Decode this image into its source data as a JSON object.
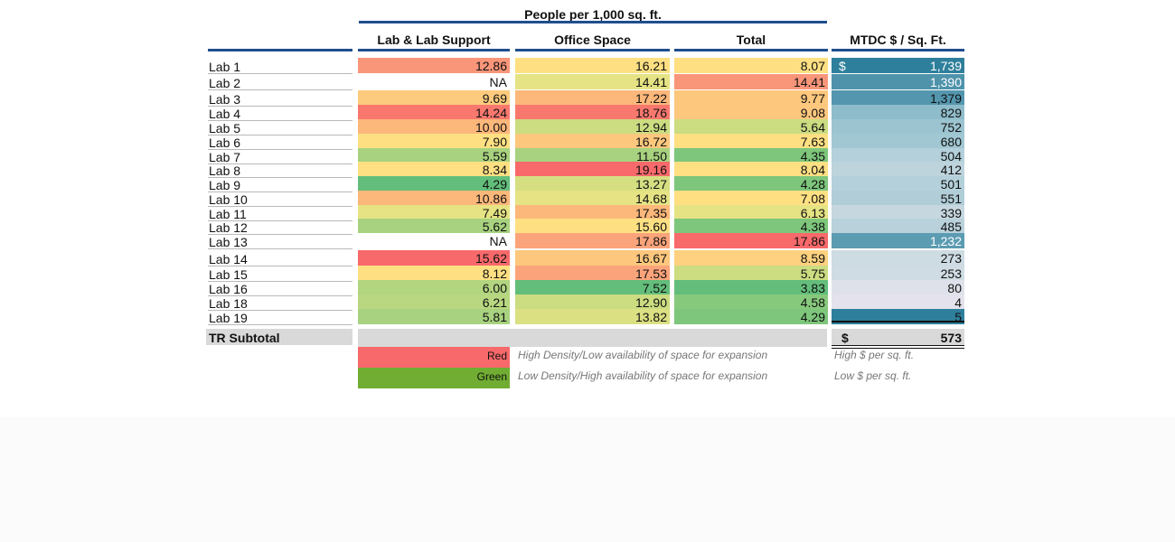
{
  "header": {
    "group_title": "People per 1,000 sq. ft.",
    "columns": [
      "Lab & Lab Support",
      "Office Space",
      "Total",
      "MTDC $ / Sq. Ft."
    ]
  },
  "currency_symbol": "$",
  "rows": [
    {
      "label": "Lab 1",
      "lab": {
        "text": "12.86",
        "color": "#f9967a"
      },
      "office": {
        "text": "16.21",
        "color": "#fee083"
      },
      "total": {
        "text": "8.07",
        "color": "#fee083"
      },
      "mtdc": {
        "text": "1,739",
        "color": "#2e7f9b",
        "fg": "#ffffff"
      },
      "show_dollar": true
    },
    {
      "label": "Lab 2",
      "lab": {
        "text": "NA",
        "color": "#ffffff"
      },
      "office": {
        "text": "14.41",
        "color": "#e6e384"
      },
      "total": {
        "text": "14.41",
        "color": "#f9967a"
      },
      "mtdc": {
        "text": "1,390",
        "color": "#4f93ab",
        "fg": "#ffffff"
      }
    },
    {
      "label": "Lab 3",
      "lab": {
        "text": "9.69",
        "color": "#fdcb7e"
      },
      "office": {
        "text": "17.22",
        "color": "#fcb77a"
      },
      "total": {
        "text": "9.77",
        "color": "#fdc77d"
      },
      "mtdc": {
        "text": "1,379",
        "color": "#5496ae",
        "fg": "#111111"
      }
    },
    {
      "label": "Lab 4",
      "lab": {
        "text": "14.24",
        "color": "#f8786e"
      },
      "office": {
        "text": "18.76",
        "color": "#f8786e"
      },
      "total": {
        "text": "9.08",
        "color": "#fdc77d"
      },
      "mtdc": {
        "text": "829",
        "color": "#8fbccb",
        "fg": "#111111"
      }
    },
    {
      "label": "Lab 5",
      "lab": {
        "text": "10.00",
        "color": "#fcb77a"
      },
      "office": {
        "text": "12.94",
        "color": "#cbdc81"
      },
      "total": {
        "text": "5.64",
        "color": "#cbdc81"
      },
      "mtdc": {
        "text": "752",
        "color": "#9cc3d0",
        "fg": "#111111"
      }
    },
    {
      "label": "Lab 6",
      "lab": {
        "text": "7.90",
        "color": "#fee083"
      },
      "office": {
        "text": "16.72",
        "color": "#fdc77d"
      },
      "total": {
        "text": "7.63",
        "color": "#fee083"
      },
      "mtdc": {
        "text": "680",
        "color": "#a1c7d3",
        "fg": "#111111"
      }
    },
    {
      "label": "Lab 7",
      "lab": {
        "text": "5.59",
        "color": "#a8d27f"
      },
      "office": {
        "text": "11.50",
        "color": "#a8d27f"
      },
      "total": {
        "text": "4.35",
        "color": "#7dc67b"
      },
      "mtdc": {
        "text": "504",
        "color": "#b4d0da",
        "fg": "#111111"
      }
    },
    {
      "label": "Lab 8",
      "lab": {
        "text": "8.34",
        "color": "#fee083"
      },
      "office": {
        "text": "19.16",
        "color": "#f8696b"
      },
      "total": {
        "text": "8.04",
        "color": "#fee083"
      },
      "mtdc": {
        "text": "412",
        "color": "#bdd4dd",
        "fg": "#111111"
      }
    },
    {
      "label": "Lab 9",
      "lab": {
        "text": "4.29",
        "color": "#63be7b"
      },
      "office": {
        "text": "13.27",
        "color": "#d5df82"
      },
      "total": {
        "text": "4.28",
        "color": "#7dc67b"
      },
      "mtdc": {
        "text": "501",
        "color": "#b4d0da",
        "fg": "#111111"
      }
    },
    {
      "label": "Lab 10",
      "lab": {
        "text": "10.86",
        "color": "#fcb77a"
      },
      "office": {
        "text": "14.68",
        "color": "#e6e384"
      },
      "total": {
        "text": "7.08",
        "color": "#fee083"
      },
      "mtdc": {
        "text": "551",
        "color": "#b0cdd8",
        "fg": "#111111"
      }
    },
    {
      "label": "Lab 11",
      "lab": {
        "text": "7.49",
        "color": "#e6e384"
      },
      "office": {
        "text": "17.35",
        "color": "#fcb77a"
      },
      "total": {
        "text": "6.13",
        "color": "#e6e384"
      },
      "mtdc": {
        "text": "339",
        "color": "#c6d7e0",
        "fg": "#111111"
      }
    },
    {
      "label": "Lab 12",
      "lab": {
        "text": "5.62",
        "color": "#a8d27f"
      },
      "office": {
        "text": "15.60",
        "color": "#fee083"
      },
      "total": {
        "text": "4.38",
        "color": "#7dc67b"
      },
      "mtdc": {
        "text": "485",
        "color": "#b8d1db",
        "fg": "#111111"
      }
    },
    {
      "label": "Lab 13",
      "lab": {
        "text": "NA",
        "color": "#ffffff"
      },
      "office": {
        "text": "17.86",
        "color": "#fba47b"
      },
      "total": {
        "text": "17.86",
        "color": "#f8696b"
      },
      "mtdc": {
        "text": "1,232",
        "color": "#5c9cb2",
        "fg": "#ffffff"
      }
    },
    {
      "label": "Lab 14",
      "lab": {
        "text": "15.62",
        "color": "#f8696b"
      },
      "office": {
        "text": "16.67",
        "color": "#fdc77d"
      },
      "total": {
        "text": "8.59",
        "color": "#fdd17f"
      },
      "mtdc": {
        "text": "273",
        "color": "#cddbe3",
        "fg": "#111111"
      }
    },
    {
      "label": "Lab 15",
      "lab": {
        "text": "8.12",
        "color": "#fee083"
      },
      "office": {
        "text": "17.53",
        "color": "#fba47b"
      },
      "total": {
        "text": "5.75",
        "color": "#cbdc81"
      },
      "mtdc": {
        "text": "253",
        "color": "#cfdce4",
        "fg": "#111111"
      }
    },
    {
      "label": "Lab 16",
      "lab": {
        "text": "6.00",
        "color": "#b2d580"
      },
      "office": {
        "text": "7.52",
        "color": "#63be7b"
      },
      "total": {
        "text": "3.83",
        "color": "#63be7b"
      },
      "mtdc": {
        "text": "80",
        "color": "#dfe1ea",
        "fg": "#111111"
      }
    },
    {
      "label": "Lab 18",
      "lab": {
        "text": "6.21",
        "color": "#b8d780"
      },
      "office": {
        "text": "12.90",
        "color": "#cbdc81"
      },
      "total": {
        "text": "4.58",
        "color": "#87c97c"
      },
      "mtdc": {
        "text": "4",
        "color": "#e4e2ec",
        "fg": "#111111"
      }
    },
    {
      "label": "Lab 19",
      "lab": {
        "text": "5.81",
        "color": "#a8d27f"
      },
      "office": {
        "text": "13.82",
        "color": "#dbe083"
      },
      "total": {
        "text": "4.29",
        "color": "#7dc67b"
      },
      "mtdc": {
        "text": "5",
        "color": "#2e7f9b",
        "fg": "#111111"
      }
    }
  ],
  "subtotal": {
    "label": "TR Subtotal",
    "dollar": "$",
    "value": "573"
  },
  "legend": [
    {
      "label": "Red",
      "color": "#f8696b",
      "description": "High Density/Low availability of space for expansion",
      "note": "High $ per sq. ft."
    },
    {
      "label": "Green",
      "color": "#70ad32",
      "description": "Low Density/High availability of space for expansion",
      "note": "Low $ per sq. ft."
    }
  ]
}
